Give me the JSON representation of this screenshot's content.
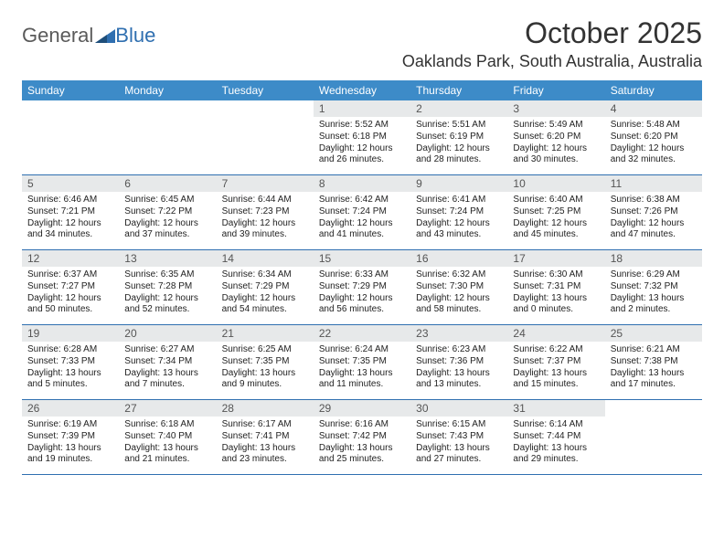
{
  "logo": {
    "text_general": "General",
    "text_blue": "Blue"
  },
  "title": "October 2025",
  "subtitle": "Oaklands Park, South Australia, Australia",
  "colors": {
    "header_bg": "#3d8bc8",
    "header_text": "#ffffff",
    "border": "#2f6fb0",
    "date_bar_bg": "#e7e9ea",
    "logo_gray": "#5a5a5a",
    "logo_blue": "#2f6fb0"
  },
  "day_headers": [
    "Sunday",
    "Monday",
    "Tuesday",
    "Wednesday",
    "Thursday",
    "Friday",
    "Saturday"
  ],
  "weeks": [
    [
      {
        "blank": true
      },
      {
        "blank": true
      },
      {
        "blank": true
      },
      {
        "date": "1",
        "sunrise": "5:52 AM",
        "sunset": "6:18 PM",
        "daylight": "12 hours and 26 minutes."
      },
      {
        "date": "2",
        "sunrise": "5:51 AM",
        "sunset": "6:19 PM",
        "daylight": "12 hours and 28 minutes."
      },
      {
        "date": "3",
        "sunrise": "5:49 AM",
        "sunset": "6:20 PM",
        "daylight": "12 hours and 30 minutes."
      },
      {
        "date": "4",
        "sunrise": "5:48 AM",
        "sunset": "6:20 PM",
        "daylight": "12 hours and 32 minutes."
      }
    ],
    [
      {
        "date": "5",
        "sunrise": "6:46 AM",
        "sunset": "7:21 PM",
        "daylight": "12 hours and 34 minutes."
      },
      {
        "date": "6",
        "sunrise": "6:45 AM",
        "sunset": "7:22 PM",
        "daylight": "12 hours and 37 minutes."
      },
      {
        "date": "7",
        "sunrise": "6:44 AM",
        "sunset": "7:23 PM",
        "daylight": "12 hours and 39 minutes."
      },
      {
        "date": "8",
        "sunrise": "6:42 AM",
        "sunset": "7:24 PM",
        "daylight": "12 hours and 41 minutes."
      },
      {
        "date": "9",
        "sunrise": "6:41 AM",
        "sunset": "7:24 PM",
        "daylight": "12 hours and 43 minutes."
      },
      {
        "date": "10",
        "sunrise": "6:40 AM",
        "sunset": "7:25 PM",
        "daylight": "12 hours and 45 minutes."
      },
      {
        "date": "11",
        "sunrise": "6:38 AM",
        "sunset": "7:26 PM",
        "daylight": "12 hours and 47 minutes."
      }
    ],
    [
      {
        "date": "12",
        "sunrise": "6:37 AM",
        "sunset": "7:27 PM",
        "daylight": "12 hours and 50 minutes."
      },
      {
        "date": "13",
        "sunrise": "6:35 AM",
        "sunset": "7:28 PM",
        "daylight": "12 hours and 52 minutes."
      },
      {
        "date": "14",
        "sunrise": "6:34 AM",
        "sunset": "7:29 PM",
        "daylight": "12 hours and 54 minutes."
      },
      {
        "date": "15",
        "sunrise": "6:33 AM",
        "sunset": "7:29 PM",
        "daylight": "12 hours and 56 minutes."
      },
      {
        "date": "16",
        "sunrise": "6:32 AM",
        "sunset": "7:30 PM",
        "daylight": "12 hours and 58 minutes."
      },
      {
        "date": "17",
        "sunrise": "6:30 AM",
        "sunset": "7:31 PM",
        "daylight": "13 hours and 0 minutes."
      },
      {
        "date": "18",
        "sunrise": "6:29 AM",
        "sunset": "7:32 PM",
        "daylight": "13 hours and 2 minutes."
      }
    ],
    [
      {
        "date": "19",
        "sunrise": "6:28 AM",
        "sunset": "7:33 PM",
        "daylight": "13 hours and 5 minutes."
      },
      {
        "date": "20",
        "sunrise": "6:27 AM",
        "sunset": "7:34 PM",
        "daylight": "13 hours and 7 minutes."
      },
      {
        "date": "21",
        "sunrise": "6:25 AM",
        "sunset": "7:35 PM",
        "daylight": "13 hours and 9 minutes."
      },
      {
        "date": "22",
        "sunrise": "6:24 AM",
        "sunset": "7:35 PM",
        "daylight": "13 hours and 11 minutes."
      },
      {
        "date": "23",
        "sunrise": "6:23 AM",
        "sunset": "7:36 PM",
        "daylight": "13 hours and 13 minutes."
      },
      {
        "date": "24",
        "sunrise": "6:22 AM",
        "sunset": "7:37 PM",
        "daylight": "13 hours and 15 minutes."
      },
      {
        "date": "25",
        "sunrise": "6:21 AM",
        "sunset": "7:38 PM",
        "daylight": "13 hours and 17 minutes."
      }
    ],
    [
      {
        "date": "26",
        "sunrise": "6:19 AM",
        "sunset": "7:39 PM",
        "daylight": "13 hours and 19 minutes."
      },
      {
        "date": "27",
        "sunrise": "6:18 AM",
        "sunset": "7:40 PM",
        "daylight": "13 hours and 21 minutes."
      },
      {
        "date": "28",
        "sunrise": "6:17 AM",
        "sunset": "7:41 PM",
        "daylight": "13 hours and 23 minutes."
      },
      {
        "date": "29",
        "sunrise": "6:16 AM",
        "sunset": "7:42 PM",
        "daylight": "13 hours and 25 minutes."
      },
      {
        "date": "30",
        "sunrise": "6:15 AM",
        "sunset": "7:43 PM",
        "daylight": "13 hours and 27 minutes."
      },
      {
        "date": "31",
        "sunrise": "6:14 AM",
        "sunset": "7:44 PM",
        "daylight": "13 hours and 29 minutes."
      },
      {
        "blank": true
      }
    ]
  ],
  "labels": {
    "sunrise": "Sunrise: ",
    "sunset": "Sunset: ",
    "daylight": "Daylight: "
  }
}
